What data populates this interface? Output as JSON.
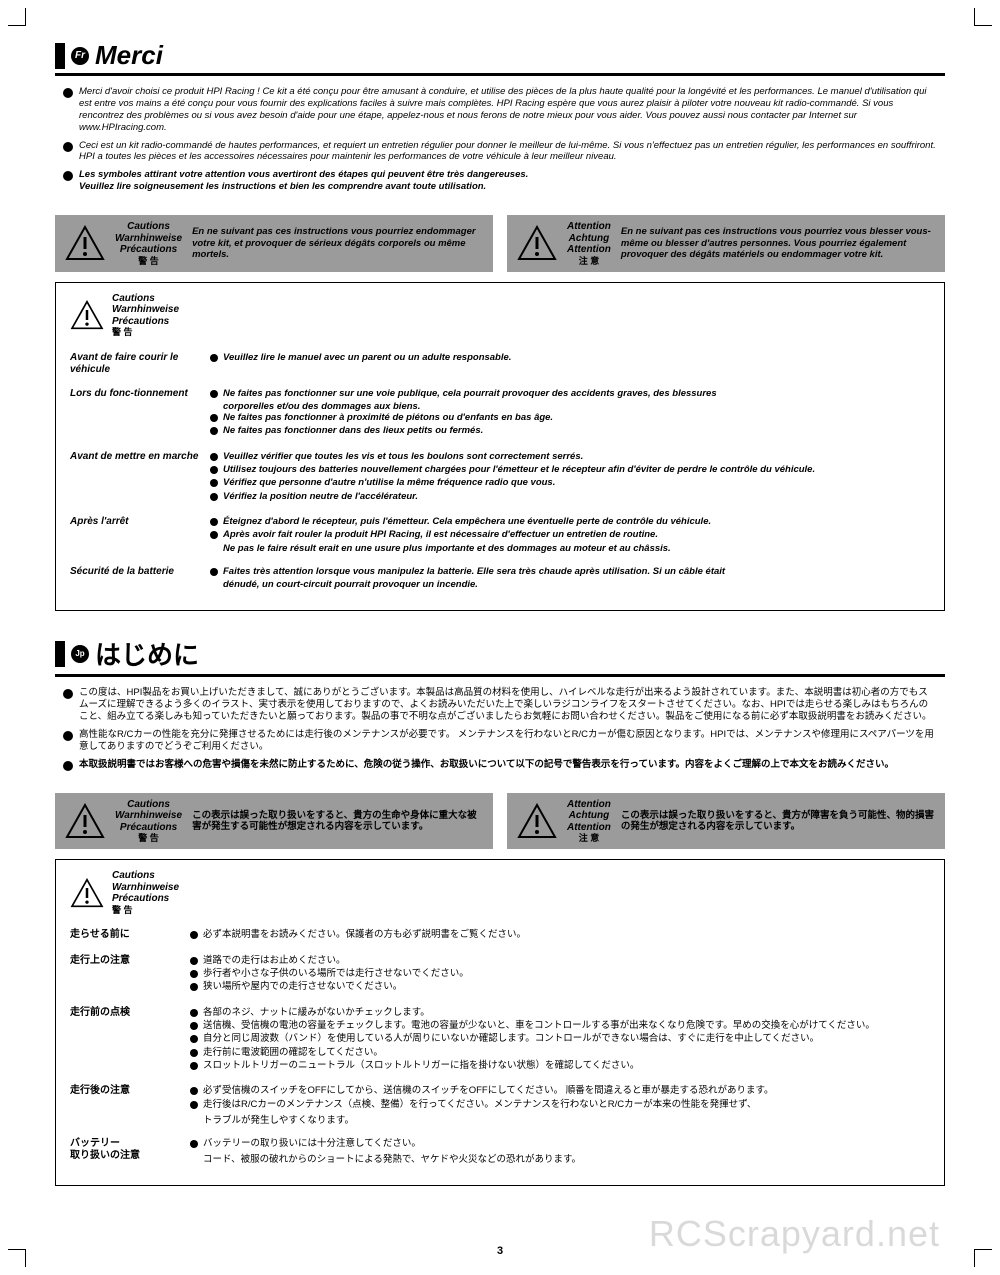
{
  "page_number": "3",
  "watermark": "RCScrapyard.net",
  "caution_labels": {
    "l1": "Cautions",
    "l2": "Warnhinweise",
    "l3": "Précautions",
    "l4": "警 告"
  },
  "attention_labels": {
    "l1": "Attention",
    "l2": "Achtung",
    "l3": "Attention",
    "l4": "注 意"
  },
  "fr": {
    "lang_code": "Fr",
    "title": "Merci",
    "intro": [
      "Merci d'avoir choisi ce produit HPI Racing ! Ce kit a été conçu pour être amusant à conduire, et utilise des pièces de la plus haute qualité pour la longévité et les performances. Le manuel d'utilisation qui est entre vos mains a été conçu pour vous fournir des explications faciles à suivre mais complètes. HPI Racing espère que vous aurez plaisir à piloter votre nouveau kit radio-commandé. Si vous rencontrez des problèmes ou si vous avez besoin d'aide pour une étape, appelez-nous et nous ferons de notre mieux pour vous aider. Vous pouvez aussi nous contacter par Internet sur www.HPIracing.com.",
      "Ceci est un kit radio-commandé de hautes performances, et requiert un entretien régulier pour donner le meilleur de lui-même. Si vous n'effectuez pas un entretien régulier, les performances en souffriront. HPI a toutes les pièces et les accessoires nécessaires pour maintenir les performances de votre véhicule à leur meilleur niveau."
    ],
    "intro_bold": "Les symboles attirant votre attention vous avertiront des étapes qui peuvent être très dangereuses.\nVeuillez lire soigneusement les instructions et bien les comprendre avant toute utilisation.",
    "caution_box": "En ne suivant pas ces instructions vous pourriez endommager votre kit, et provoquer de sérieux dégâts corporels ou même mortels.",
    "attention_box": "En ne suivant pas ces instructions vous pourriez vous blesser vous-même ou blesser d'autres personnes. Vous pourriez également provoquer des dégâts matériels ou endommager votre kit.",
    "rules": [
      {
        "label": "Avant de faire courir le véhicule",
        "items": [
          [
            "Veuillez lire le manuel avec un parent ou un adulte responsable."
          ]
        ]
      },
      {
        "label": "Lors du fonc-tionnement",
        "items": [
          [
            "Ne faites pas fonctionner sur une voie publique, cela pourrait provoquer des accidents graves, des blessures",
            "corporelles et/ou des dommages aux biens."
          ],
          [
            "Ne faites pas fonctionner à proximité de piétons ou d'enfants en bas âge."
          ],
          [
            "Ne faites pas fonctionner dans des lieux petits ou fermés."
          ]
        ]
      },
      {
        "label": "Avant de mettre en marche",
        "items": [
          [
            "Veuillez vérifier que toutes les vis et tous les boulons sont correctement serrés."
          ],
          [
            "Utilisez toujours des batteries nouvellement chargées pour l'émetteur et le récepteur afin d'éviter de perdre le contrôle du véhicule."
          ],
          [
            "Vérifiez que personne d'autre n'utilise la même fréquence radio que vous."
          ],
          [
            "Vérifiez la position neutre de l'accélérateur."
          ]
        ]
      },
      {
        "label": "Après l'arrêt",
        "items": [
          [
            "Éteignez d'abord le récepteur, puis l'émetteur. Cela empêchera une éventuelle perte de contrôle du véhicule."
          ],
          [
            "Après avoir fait rouler la produit HPI Racing, il est nécessaire d'effectuer un entretien de routine.",
            "Ne pas le faire résult erait en une usure plus importante et des dommages au moteur et au châssis."
          ]
        ]
      },
      {
        "label": "Sécurité de la batterie",
        "items": [
          [
            "Faites très attention lorsque vous manipulez la batterie. Elle sera très chaude après utilisation. Si un câble était",
            "dénudé, un court-circuit pourrait provoquer un incendie."
          ]
        ]
      }
    ]
  },
  "jp": {
    "lang_code": "Jp",
    "title": "はじめに",
    "intro": [
      "この度は、HPI製品をお買い上げいただきまして、誠にありがとうございます。本製品は高品質の材料を使用し、ハイレベルな走行が出来るよう設計されています。また、本説明書は初心者の方でもスムーズに理解できるよう多くのイラスト、実寸表示を使用しておりますので、よくお読みいただいた上で楽しいラジコンライフをスタートさせてください。なお、HPIでは走らせる楽しみはもちろんのこと、組み立てる楽しみも知っていただきたいと願っております。製品の事で不明な点がございましたらお気軽にお問い合わせください。製品をご使用になる前に必ず本取扱説明書をお読みください。",
      "高性能なR/Cカーの性能を充分に発揮させるためには走行後のメンテナンスが必要です。 メンテナンスを行わないとR/Cカーが傷む原因となります。HPIでは、メンテナンスや修理用にスペアパーツを用意してありますのでどうぞご利用ください。"
    ],
    "intro_bold": "本取扱説明書ではお客様への危害や損傷を未然に防止するために、危険の従う操作、お取扱いについて以下の記号で警告表示を行っています。内容をよくご理解の上で本文をお読みください。",
    "caution_box": "この表示は誤った取り扱いをすると、貴方の生命や身体に重大な被害が発生する可能性が想定される内容を示しています。",
    "attention_box": "この表示は誤った取り扱いをすると、貴方が障害を負う可能性、物的損害の発生が想定される内容を示しています。",
    "rules": [
      {
        "label": "走らせる前に",
        "items": [
          [
            "必ず本説明書をお読みください。保護者の方も必ず説明書をご覧ください。"
          ]
        ]
      },
      {
        "label": "走行上の注意",
        "items": [
          [
            "道路での走行はお止めください。"
          ],
          [
            "歩行者や小さな子供のいる場所では走行させないでください。"
          ],
          [
            "狭い場所や屋内での走行させないでください。"
          ]
        ]
      },
      {
        "label": "走行前の点検",
        "items": [
          [
            "各部のネジ、ナットに緩みがないかチェックします。"
          ],
          [
            "送信機、受信機の電池の容量をチェックします。電池の容量が少ないと、車をコントロールする事が出来なくなり危険です。早めの交換を心がけてください。"
          ],
          [
            "自分と同じ周波数（バンド）を使用している人が周りにいないか確認します。コントロールができない場合は、すぐに走行を中止してください。"
          ],
          [
            "走行前に電波範囲の確認をしてください。"
          ],
          [
            "スロットルトリガーのニュートラル（スロットルトリガーに指を掛けない状態）を確認してください。"
          ]
        ]
      },
      {
        "label": "走行後の注意",
        "items": [
          [
            "必ず受信機のスイッチをOFFにしてから、送信機のスイッチをOFFにしてください。 順番を間違えると車が暴走する恐れがあります。"
          ],
          [
            "走行後はR/Cカーのメンテナンス（点検、整備）を行ってください。メンテナンスを行わないとR/Cカーが本来の性能を発揮せず、",
            "トラブルが発生しやすくなります。"
          ]
        ]
      },
      {
        "label": "バッテリー\n取り扱いの注意",
        "items": [
          [
            "バッテリーの取り扱いには十分注意してください。",
            "コード、被服の破れからのショートによる発熱で、ヤケドや火災などの恐れがあります。"
          ]
        ]
      }
    ]
  }
}
